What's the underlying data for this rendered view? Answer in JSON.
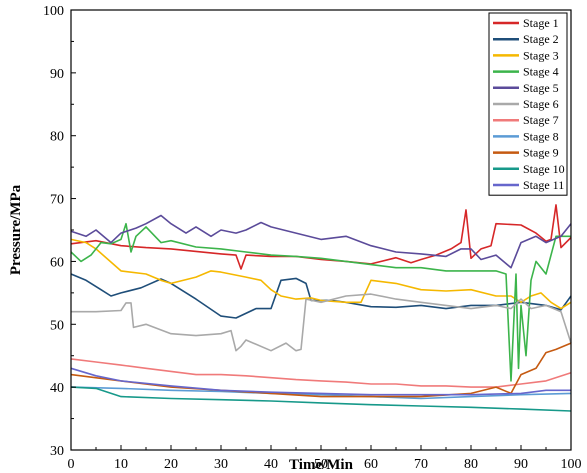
{
  "chart_data": {
    "type": "line",
    "title": "",
    "xlabel": "Time/Min",
    "ylabel": "Pressure/MPa",
    "xlim": [
      0,
      100
    ],
    "ylim": [
      30,
      100
    ],
    "xticks": [
      0,
      10,
      20,
      30,
      40,
      50,
      60,
      70,
      80,
      90,
      100
    ],
    "yticks": [
      30,
      40,
      50,
      60,
      70,
      80,
      90,
      100
    ],
    "grid": false,
    "legend_position": "top-right",
    "series": [
      {
        "name": "Stage 1",
        "color": "#d62728",
        "points": [
          [
            0,
            62.8
          ],
          [
            5,
            63.3
          ],
          [
            10,
            62.5
          ],
          [
            15,
            62.2
          ],
          [
            20,
            62
          ],
          [
            25,
            61.6
          ],
          [
            30,
            61.2
          ],
          [
            33,
            61
          ],
          [
            34,
            58.8
          ],
          [
            35,
            61
          ],
          [
            40,
            60.8
          ],
          [
            45,
            60.8
          ],
          [
            50,
            60.3
          ],
          [
            55,
            60
          ],
          [
            60,
            59.6
          ],
          [
            65,
            60.6
          ],
          [
            68,
            59.8
          ],
          [
            70,
            60.3
          ],
          [
            73,
            61
          ],
          [
            76,
            62
          ],
          [
            78,
            63
          ],
          [
            79,
            68.2
          ],
          [
            80,
            60.5
          ],
          [
            82,
            62
          ],
          [
            84,
            62.5
          ],
          [
            85,
            66
          ],
          [
            90,
            65.8
          ],
          [
            93,
            64.5
          ],
          [
            95,
            63.2
          ],
          [
            96,
            63.5
          ],
          [
            97,
            69
          ],
          [
            98,
            62.2
          ],
          [
            100,
            63.8
          ]
        ]
      },
      {
        "name": "Stage 2",
        "color": "#1f4e79",
        "points": [
          [
            0,
            58
          ],
          [
            3,
            57
          ],
          [
            6,
            55.5
          ],
          [
            8,
            54.5
          ],
          [
            10,
            55
          ],
          [
            14,
            55.8
          ],
          [
            18,
            57.2
          ],
          [
            20,
            56.5
          ],
          [
            25,
            54
          ],
          [
            30,
            51.3
          ],
          [
            33,
            51
          ],
          [
            37,
            52.5
          ],
          [
            40,
            52.5
          ],
          [
            42,
            57
          ],
          [
            45,
            57.3
          ],
          [
            47,
            56.5
          ],
          [
            48,
            53.8
          ],
          [
            52,
            53.8
          ],
          [
            55,
            53.5
          ],
          [
            60,
            52.8
          ],
          [
            65,
            52.7
          ],
          [
            70,
            53
          ],
          [
            75,
            52.5
          ],
          [
            80,
            53
          ],
          [
            85,
            53
          ],
          [
            90,
            53.5
          ],
          [
            95,
            53
          ],
          [
            98,
            52.3
          ],
          [
            100,
            54.5
          ]
        ]
      },
      {
        "name": "Stage 3",
        "color": "#f5b800",
        "points": [
          [
            0,
            63.5
          ],
          [
            3,
            63
          ],
          [
            5,
            62
          ],
          [
            10,
            58.5
          ],
          [
            15,
            58
          ],
          [
            18,
            57
          ],
          [
            20,
            56.5
          ],
          [
            25,
            57.5
          ],
          [
            28,
            58.5
          ],
          [
            30,
            58.3
          ],
          [
            35,
            57.5
          ],
          [
            38,
            57
          ],
          [
            40,
            55.5
          ],
          [
            42,
            54.5
          ],
          [
            45,
            54
          ],
          [
            48,
            54.2
          ],
          [
            50,
            53.8
          ],
          [
            55,
            53.5
          ],
          [
            58,
            53.5
          ],
          [
            60,
            57
          ],
          [
            65,
            56.5
          ],
          [
            70,
            55.5
          ],
          [
            75,
            55.3
          ],
          [
            80,
            55.5
          ],
          [
            85,
            54.5
          ],
          [
            88,
            54.5
          ],
          [
            90,
            53.5
          ],
          [
            92,
            54.5
          ],
          [
            94,
            55
          ],
          [
            96,
            53.5
          ],
          [
            98,
            52.5
          ],
          [
            100,
            53.5
          ]
        ]
      },
      {
        "name": "Stage 4",
        "color": "#3cb44b",
        "points": [
          [
            0,
            61.5
          ],
          [
            2,
            60
          ],
          [
            4,
            61
          ],
          [
            6,
            63
          ],
          [
            8,
            62.8
          ],
          [
            10,
            63.5
          ],
          [
            11,
            66
          ],
          [
            12,
            61.5
          ],
          [
            13,
            64
          ],
          [
            15,
            65.5
          ],
          [
            18,
            63
          ],
          [
            20,
            63.3
          ],
          [
            25,
            62.3
          ],
          [
            30,
            62
          ],
          [
            35,
            61.5
          ],
          [
            40,
            61
          ],
          [
            45,
            60.8
          ],
          [
            50,
            60.5
          ],
          [
            55,
            60
          ],
          [
            60,
            59.5
          ],
          [
            65,
            59
          ],
          [
            70,
            59
          ],
          [
            75,
            58.5
          ],
          [
            80,
            58.5
          ],
          [
            85,
            58.5
          ],
          [
            87,
            58
          ],
          [
            88,
            41
          ],
          [
            89,
            58
          ],
          [
            89.5,
            43
          ],
          [
            90,
            53
          ],
          [
            91,
            45
          ],
          [
            92,
            57
          ],
          [
            93,
            60
          ],
          [
            95,
            58
          ],
          [
            97,
            64
          ],
          [
            100,
            64
          ]
        ]
      },
      {
        "name": "Stage 5",
        "color": "#5b4b9a",
        "points": [
          [
            0,
            64.8
          ],
          [
            3,
            64
          ],
          [
            5,
            65
          ],
          [
            8,
            63
          ],
          [
            10,
            64.5
          ],
          [
            13,
            65.3
          ],
          [
            15,
            66
          ],
          [
            18,
            67.3
          ],
          [
            20,
            66
          ],
          [
            23,
            64.5
          ],
          [
            25,
            65.5
          ],
          [
            28,
            64
          ],
          [
            30,
            65
          ],
          [
            33,
            64.5
          ],
          [
            35,
            65
          ],
          [
            38,
            66.2
          ],
          [
            40,
            65.5
          ],
          [
            45,
            64.5
          ],
          [
            50,
            63.5
          ],
          [
            55,
            64
          ],
          [
            60,
            62.5
          ],
          [
            65,
            61.5
          ],
          [
            70,
            61.2
          ],
          [
            75,
            60.8
          ],
          [
            78,
            62
          ],
          [
            80,
            62
          ],
          [
            82,
            60.3
          ],
          [
            85,
            61
          ],
          [
            88,
            59
          ],
          [
            90,
            63
          ],
          [
            93,
            64
          ],
          [
            95,
            63
          ],
          [
            98,
            64
          ],
          [
            100,
            66
          ]
        ]
      },
      {
        "name": "Stage 6",
        "color": "#a9a9a9",
        "points": [
          [
            0,
            52
          ],
          [
            5,
            52
          ],
          [
            10,
            52.2
          ],
          [
            11,
            53.4
          ],
          [
            12,
            53.4
          ],
          [
            12.5,
            49.5
          ],
          [
            15,
            50
          ],
          [
            20,
            48.5
          ],
          [
            25,
            48.2
          ],
          [
            30,
            48.5
          ],
          [
            32,
            49
          ],
          [
            33,
            45.8
          ],
          [
            34,
            46.5
          ],
          [
            35,
            47.5
          ],
          [
            40,
            45.8
          ],
          [
            43,
            47
          ],
          [
            45,
            45.8
          ],
          [
            46,
            46
          ],
          [
            47,
            54
          ],
          [
            50,
            53.5
          ],
          [
            55,
            54.5
          ],
          [
            60,
            54.8
          ],
          [
            65,
            54
          ],
          [
            70,
            53.5
          ],
          [
            75,
            53
          ],
          [
            80,
            52.5
          ],
          [
            85,
            53
          ],
          [
            88,
            52.5
          ],
          [
            90,
            54
          ],
          [
            92,
            52.5
          ],
          [
            95,
            53
          ],
          [
            98,
            52
          ],
          [
            100,
            47
          ]
        ]
      },
      {
        "name": "Stage 7",
        "color": "#f07a7a",
        "points": [
          [
            0,
            44.5
          ],
          [
            5,
            44
          ],
          [
            10,
            43.5
          ],
          [
            15,
            43
          ],
          [
            20,
            42.5
          ],
          [
            25,
            42
          ],
          [
            30,
            42
          ],
          [
            35,
            41.8
          ],
          [
            40,
            41.5
          ],
          [
            45,
            41.2
          ],
          [
            50,
            41
          ],
          [
            55,
            40.8
          ],
          [
            60,
            40.5
          ],
          [
            65,
            40.5
          ],
          [
            70,
            40.2
          ],
          [
            75,
            40.2
          ],
          [
            80,
            40
          ],
          [
            85,
            40
          ],
          [
            90,
            40.5
          ],
          [
            95,
            41
          ],
          [
            100,
            42.3
          ]
        ]
      },
      {
        "name": "Stage 8",
        "color": "#5b9bd5",
        "points": [
          [
            0,
            40
          ],
          [
            10,
            39.8
          ],
          [
            20,
            39.5
          ],
          [
            30,
            39.3
          ],
          [
            40,
            39
          ],
          [
            50,
            38.8
          ],
          [
            60,
            38.5
          ],
          [
            70,
            38.2
          ],
          [
            80,
            38.5
          ],
          [
            90,
            38.8
          ],
          [
            100,
            39
          ]
        ]
      },
      {
        "name": "Stage 9",
        "color": "#c55a11",
        "points": [
          [
            0,
            42
          ],
          [
            10,
            41
          ],
          [
            20,
            40
          ],
          [
            30,
            39.5
          ],
          [
            40,
            39
          ],
          [
            50,
            38.5
          ],
          [
            60,
            38.5
          ],
          [
            70,
            38.5
          ],
          [
            80,
            39
          ],
          [
            85,
            40
          ],
          [
            88,
            39
          ],
          [
            90,
            42
          ],
          [
            93,
            43
          ],
          [
            95,
            45.5
          ],
          [
            97,
            46
          ],
          [
            100,
            47
          ]
        ]
      },
      {
        "name": "Stage 10",
        "color": "#17998a",
        "points": [
          [
            0,
            40
          ],
          [
            5,
            39.8
          ],
          [
            10,
            38.5
          ],
          [
            20,
            38.2
          ],
          [
            30,
            38
          ],
          [
            40,
            37.8
          ],
          [
            50,
            37.5
          ],
          [
            60,
            37.2
          ],
          [
            70,
            37
          ],
          [
            80,
            36.8
          ],
          [
            90,
            36.5
          ],
          [
            100,
            36.2
          ]
        ]
      },
      {
        "name": "Stage 11",
        "color": "#6666cc",
        "points": [
          [
            0,
            43
          ],
          [
            5,
            41.8
          ],
          [
            10,
            41
          ],
          [
            20,
            40.2
          ],
          [
            30,
            39.5
          ],
          [
            40,
            39.2
          ],
          [
            50,
            39
          ],
          [
            60,
            38.8
          ],
          [
            70,
            38.8
          ],
          [
            80,
            38.8
          ],
          [
            90,
            39
          ],
          [
            95,
            39.5
          ],
          [
            100,
            39.5
          ]
        ]
      }
    ]
  }
}
